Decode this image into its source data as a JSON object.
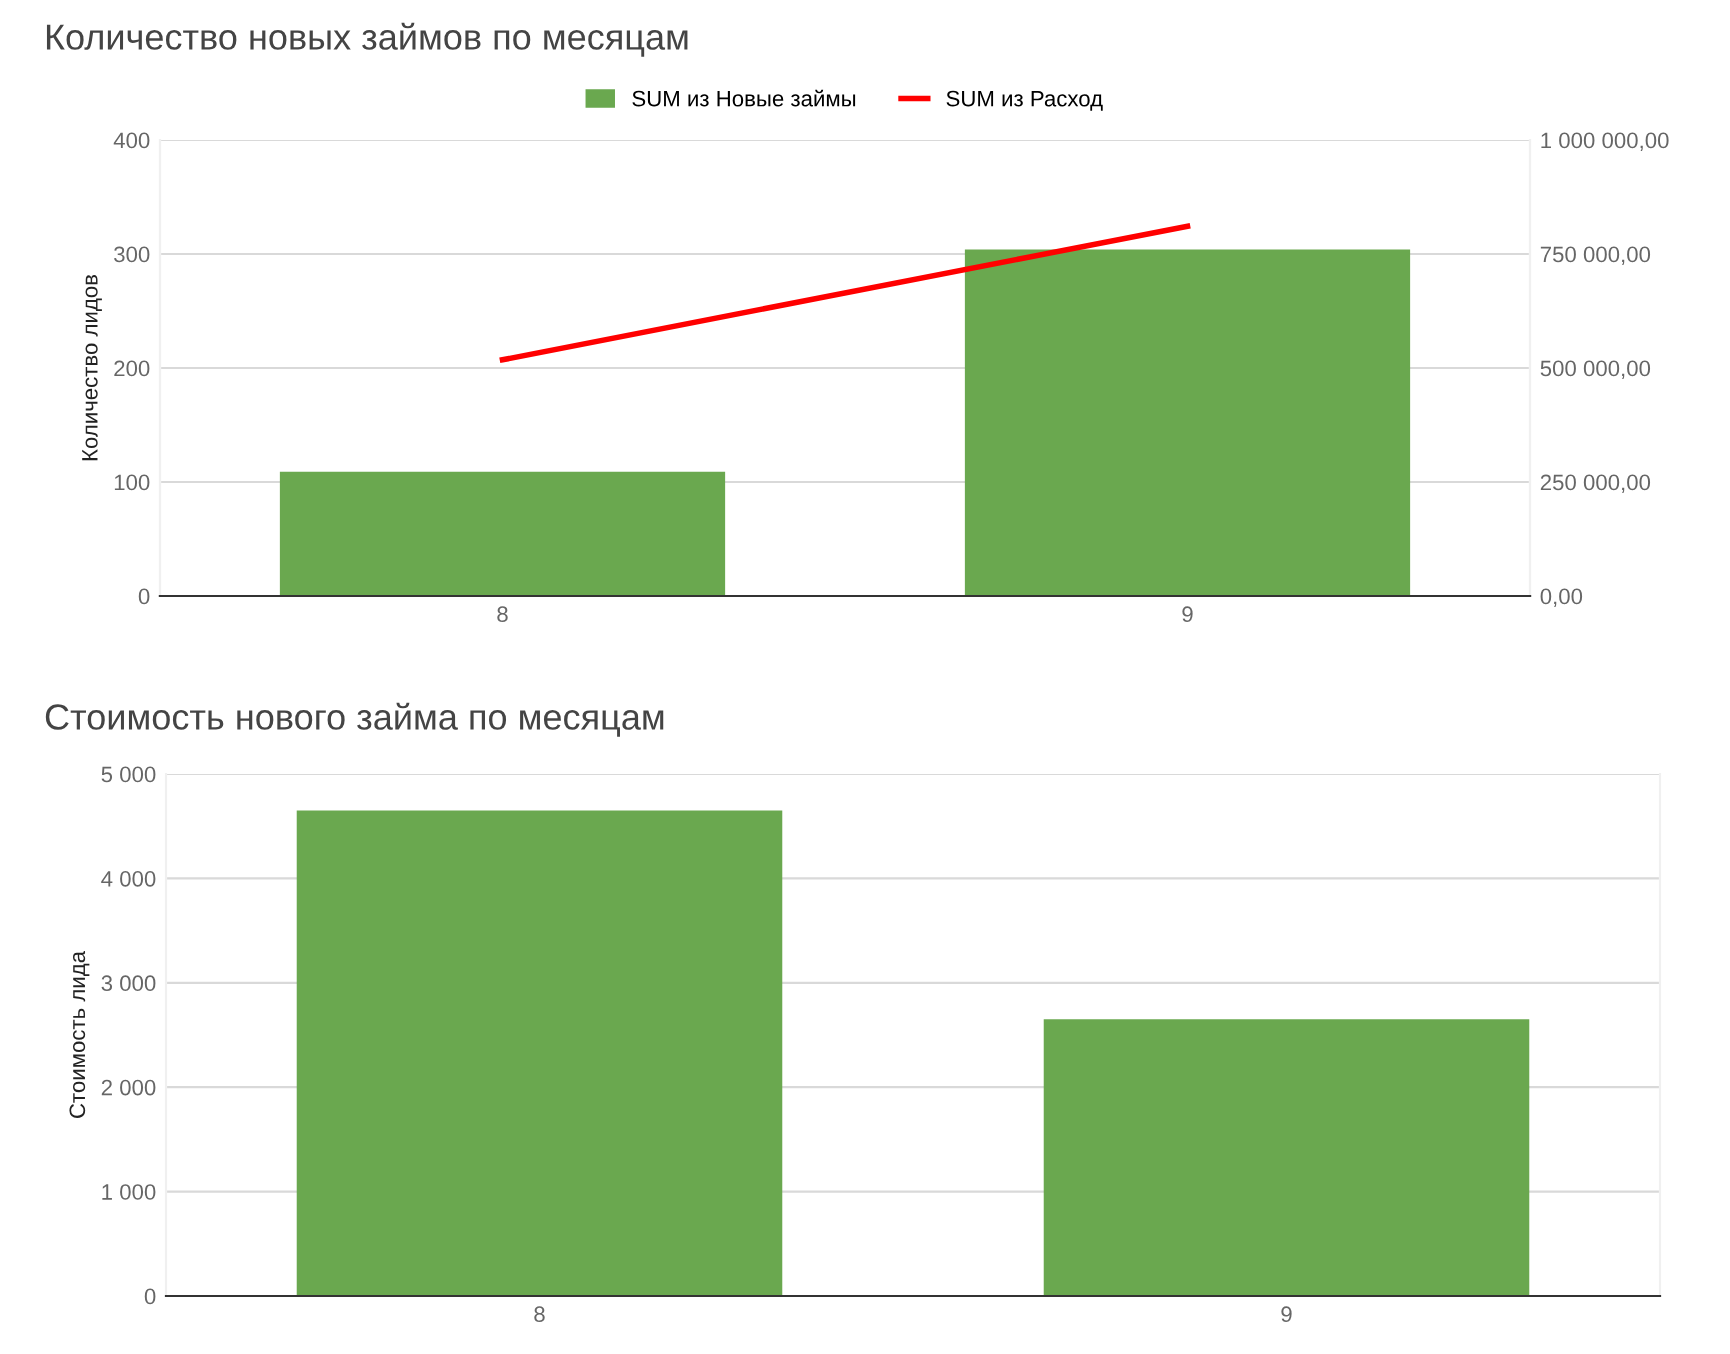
{
  "chart_data": [
    {
      "type": "bar",
      "title": "Количество новых займов по месяцам",
      "ylabel": "Количество лидов",
      "categories": [
        "8",
        "9"
      ],
      "series": [
        {
          "name": "SUM из Новые займы",
          "color": "#6aa84f",
          "values": [
            109,
            304
          ]
        },
        {
          "name": "SUM из Расход",
          "type": "line",
          "axis": "y2",
          "color": "#ff0000",
          "values": [
            518000,
            811000
          ]
        }
      ],
      "ylim": [
        0,
        400
      ],
      "yticks": [
        0,
        100,
        200,
        300,
        400
      ],
      "y2lim": [
        0,
        1000000
      ],
      "y2ticks": [
        {
          "value": 0,
          "label": "0,00"
        },
        {
          "value": 250000,
          "label": "250 000,00"
        },
        {
          "value": 500000,
          "label": "500 000,00"
        },
        {
          "value": 750000,
          "label": "750 000,00"
        },
        {
          "value": 1000000,
          "label": "1 000 000,00"
        }
      ],
      "grid": "y",
      "legend": "top"
    },
    {
      "type": "bar",
      "title": "Стоимость нового займа по месяцам",
      "ylabel": "Стоимость лида",
      "categories": [
        "8",
        "9"
      ],
      "series": [
        {
          "color": "#6aa84f",
          "values": [
            4650,
            2650
          ]
        }
      ],
      "ylim": [
        0,
        5000
      ],
      "yticks": [
        0,
        {
          "value": 1000,
          "label": "1 000"
        },
        {
          "value": 2000,
          "label": "2 000"
        },
        {
          "value": 3000,
          "label": "3 000"
        },
        {
          "value": 4000,
          "label": "4 000"
        },
        {
          "value": 5000,
          "label": "5 000"
        }
      ],
      "grid": "y"
    }
  ]
}
